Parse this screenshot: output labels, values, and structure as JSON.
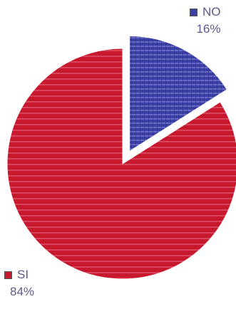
{
  "chart_data": {
    "type": "pie",
    "slices": [
      {
        "label": "NO",
        "value": 16,
        "percent_label": "16%",
        "color": "#3b3fa6",
        "exploded": true
      },
      {
        "label": "SI",
        "value": 84,
        "percent_label": "84%",
        "color": "#c8182e",
        "exploded": false
      }
    ],
    "title": ""
  }
}
